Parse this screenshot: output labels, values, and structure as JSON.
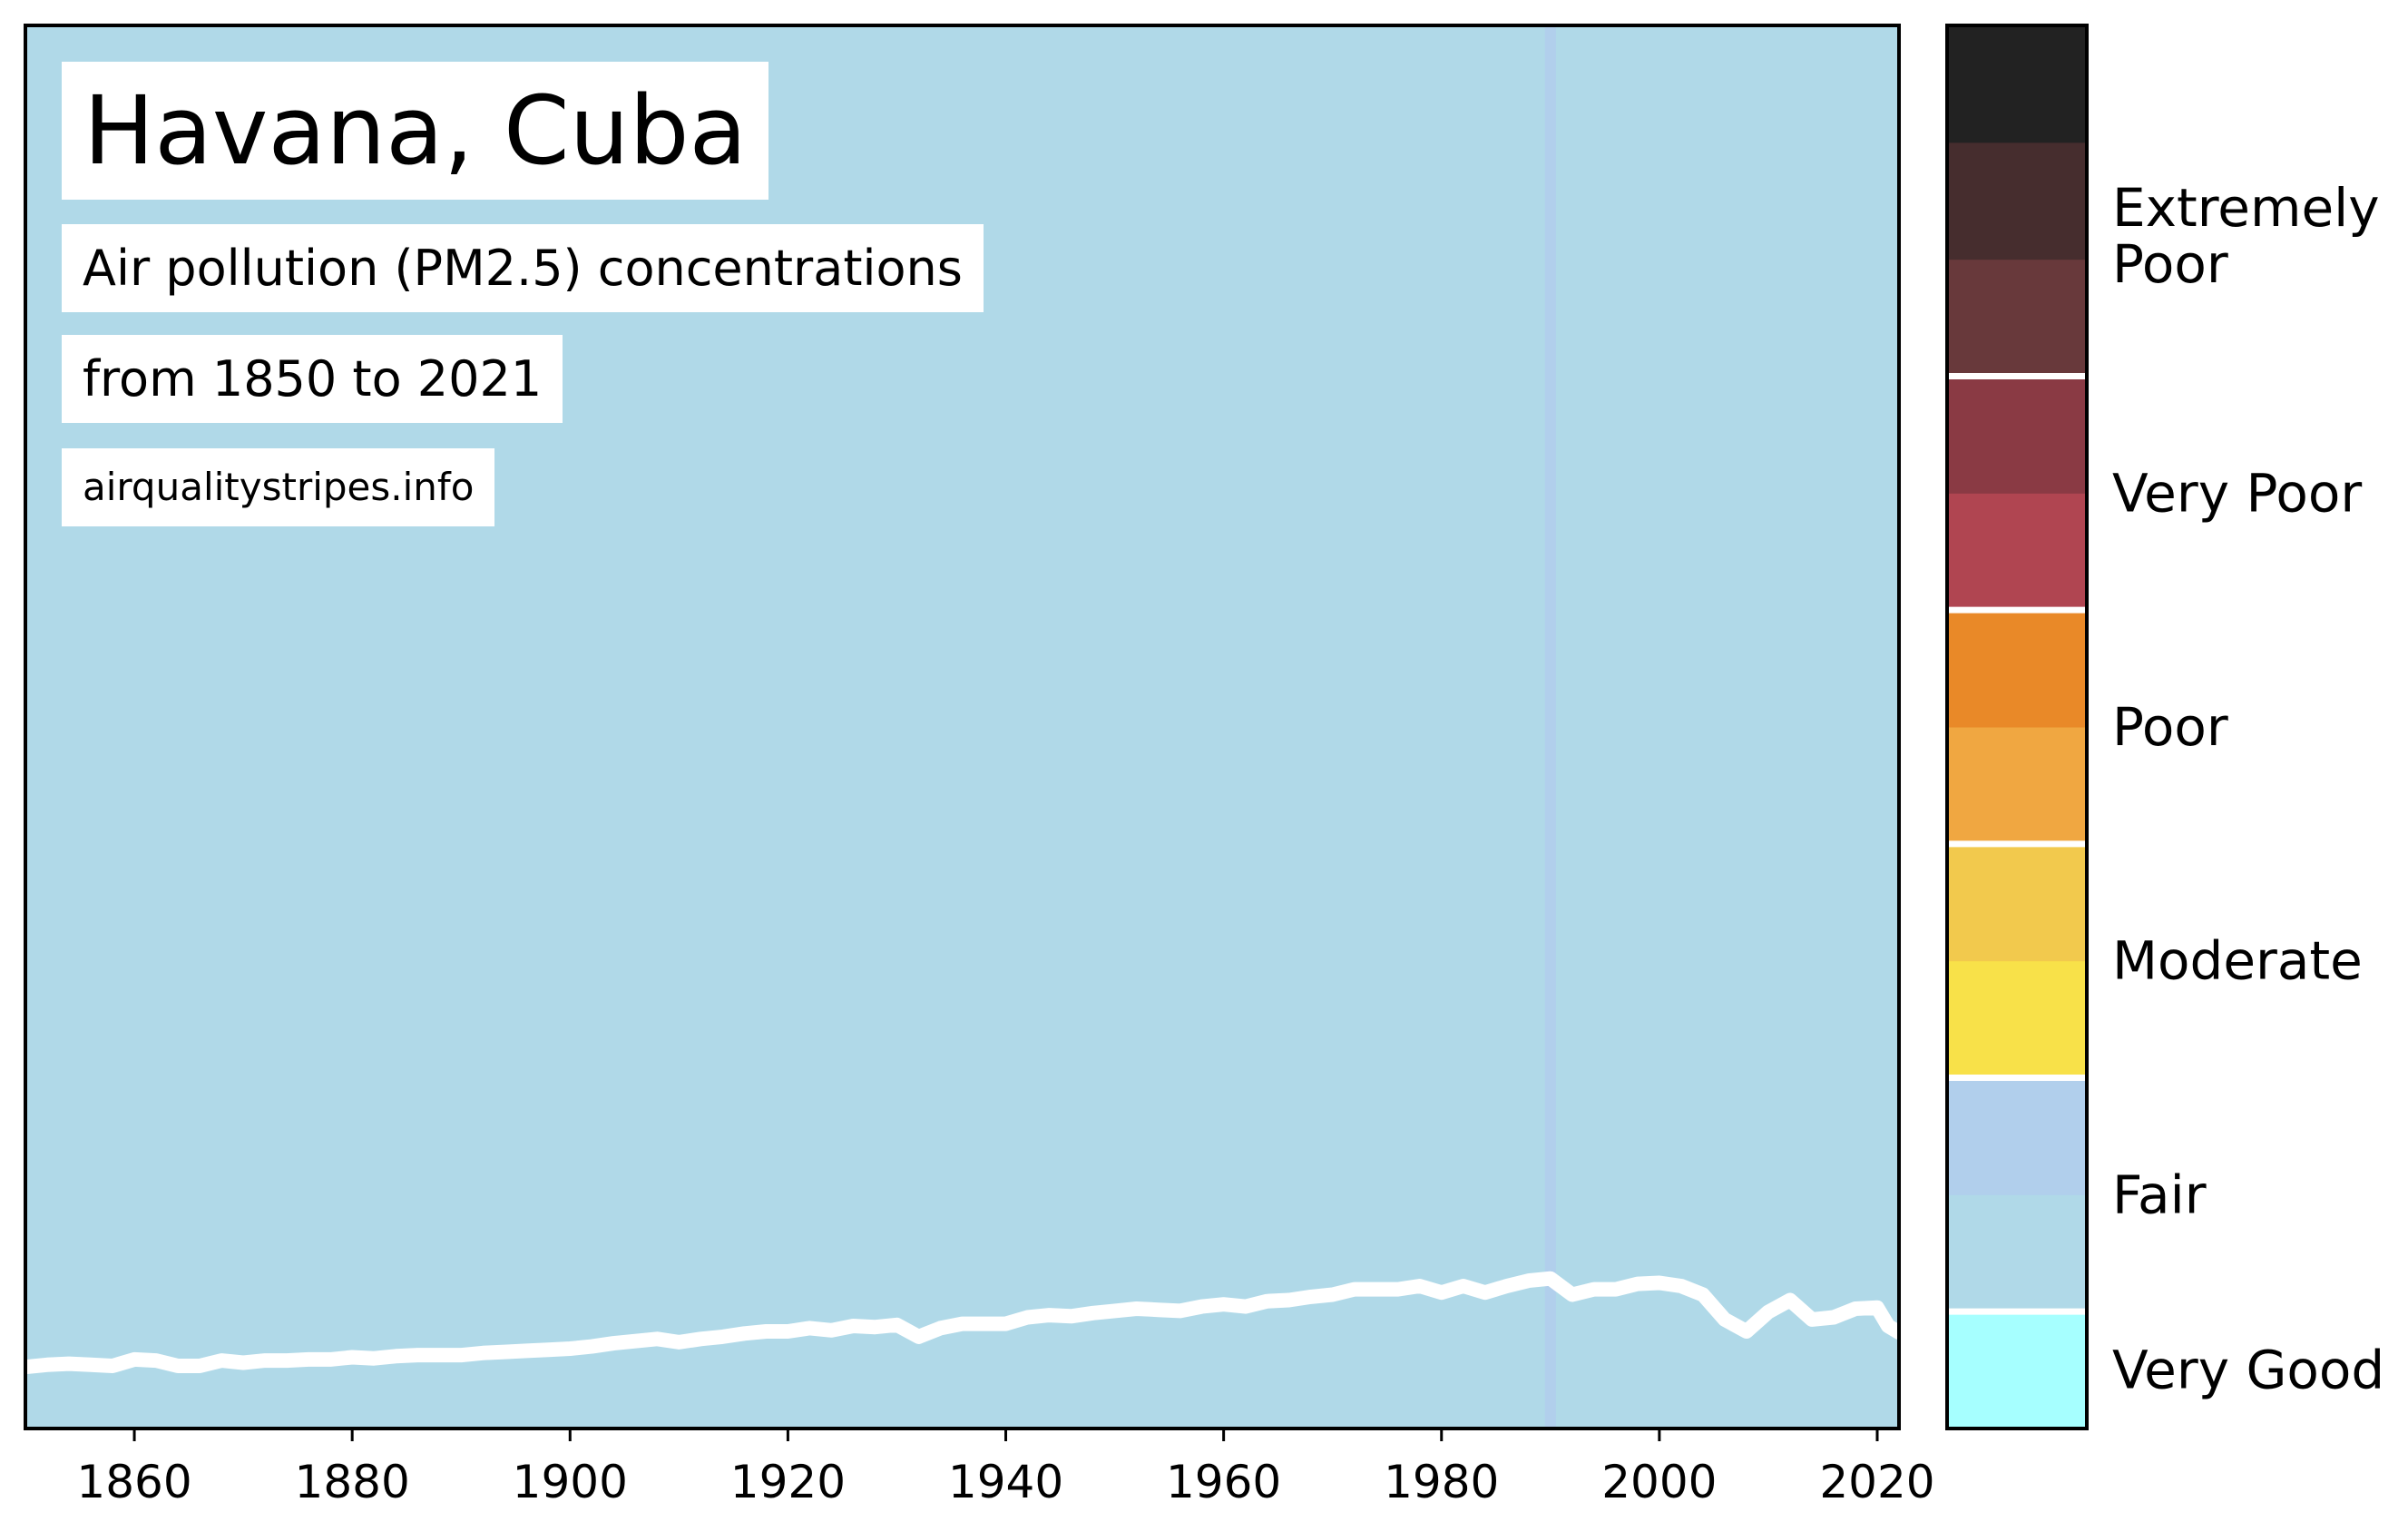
{
  "title": "Havana, Cuba",
  "subtitle_line1": "Air pollution (PM2.5) concentrations",
  "subtitle_line2": "from 1850 to 2021",
  "source": "airqualitystripes.info",
  "chart_data": {
    "type": "line",
    "title": "Havana, Cuba",
    "xlim": [
      1850,
      2022
    ],
    "ylim": [
      0,
      130
    ],
    "x_ticks": [
      1860,
      1880,
      1900,
      1920,
      1940,
      1960,
      1980,
      2000,
      2020
    ],
    "grid": false,
    "background_stripes": {
      "default_color": "#b0d9e8",
      "highlighted_years": [
        {
          "year": 1990,
          "color": "#b1cfec"
        }
      ]
    },
    "series": [
      {
        "line_color": "#ffffff",
        "points": [
          [
            1850,
            5.7
          ],
          [
            1852,
            5.9
          ],
          [
            1854,
            6.0
          ],
          [
            1856,
            5.9
          ],
          [
            1858,
            5.8
          ],
          [
            1860,
            6.4
          ],
          [
            1862,
            6.3
          ],
          [
            1864,
            5.8
          ],
          [
            1866,
            5.8
          ],
          [
            1868,
            6.3
          ],
          [
            1870,
            6.1
          ],
          [
            1872,
            6.3
          ],
          [
            1874,
            6.3
          ],
          [
            1876,
            6.4
          ],
          [
            1878,
            6.4
          ],
          [
            1880,
            6.6
          ],
          [
            1882,
            6.5
          ],
          [
            1884,
            6.7
          ],
          [
            1886,
            6.8
          ],
          [
            1888,
            6.8
          ],
          [
            1890,
            6.8
          ],
          [
            1892,
            7.0
          ],
          [
            1894,
            7.1
          ],
          [
            1896,
            7.2
          ],
          [
            1898,
            7.3
          ],
          [
            1900,
            7.4
          ],
          [
            1902,
            7.6
          ],
          [
            1904,
            7.9
          ],
          [
            1906,
            8.1
          ],
          [
            1908,
            8.3
          ],
          [
            1910,
            8.0
          ],
          [
            1912,
            8.3
          ],
          [
            1914,
            8.5
          ],
          [
            1916,
            8.8
          ],
          [
            1918,
            9.0
          ],
          [
            1920,
            9.0
          ],
          [
            1922,
            9.3
          ],
          [
            1924,
            9.1
          ],
          [
            1926,
            9.5
          ],
          [
            1928,
            9.4
          ],
          [
            1930,
            9.6
          ],
          [
            1932,
            8.5
          ],
          [
            1934,
            9.3
          ],
          [
            1936,
            9.7
          ],
          [
            1938,
            9.7
          ],
          [
            1940,
            9.7
          ],
          [
            1942,
            10.3
          ],
          [
            1944,
            10.5
          ],
          [
            1946,
            10.4
          ],
          [
            1948,
            10.7
          ],
          [
            1950,
            10.9
          ],
          [
            1952,
            11.1
          ],
          [
            1954,
            11.0
          ],
          [
            1956,
            10.9
          ],
          [
            1958,
            11.3
          ],
          [
            1960,
            11.5
          ],
          [
            1962,
            11.3
          ],
          [
            1964,
            11.8
          ],
          [
            1966,
            11.9
          ],
          [
            1968,
            12.2
          ],
          [
            1970,
            12.4
          ],
          [
            1972,
            12.9
          ],
          [
            1974,
            12.9
          ],
          [
            1976,
            12.9
          ],
          [
            1978,
            13.2
          ],
          [
            1980,
            12.6
          ],
          [
            1982,
            13.2
          ],
          [
            1984,
            12.6
          ],
          [
            1986,
            13.2
          ],
          [
            1988,
            13.7
          ],
          [
            1990,
            13.9
          ],
          [
            1992,
            12.4
          ],
          [
            1994,
            12.9
          ],
          [
            1996,
            12.9
          ],
          [
            1998,
            13.4
          ],
          [
            2000,
            13.5
          ],
          [
            2002,
            13.2
          ],
          [
            2004,
            12.4
          ],
          [
            2006,
            10.1
          ],
          [
            2008,
            9.0
          ],
          [
            2010,
            10.8
          ],
          [
            2012,
            11.9
          ],
          [
            2014,
            10.1
          ],
          [
            2016,
            10.3
          ],
          [
            2018,
            11.1
          ],
          [
            2020,
            11.2
          ],
          [
            2021,
            9.5
          ],
          [
            2022,
            8.9
          ]
        ]
      }
    ]
  },
  "colorbar": {
    "range": [
      0,
      120
    ],
    "segments": [
      {
        "from": 0,
        "to": 10,
        "color": "#a6ffff"
      },
      {
        "from": 10,
        "to": 20,
        "color": "#b0d9e8"
      },
      {
        "from": 20,
        "to": 30,
        "color": "#b1cfec"
      },
      {
        "from": 30,
        "to": 40,
        "color": "#f8e149"
      },
      {
        "from": 40,
        "to": 50,
        "color": "#f2c94d"
      },
      {
        "from": 50,
        "to": 60,
        "color": "#f0a741"
      },
      {
        "from": 60,
        "to": 70,
        "color": "#e98928"
      },
      {
        "from": 70,
        "to": 80,
        "color": "#b04551"
      },
      {
        "from": 80,
        "to": 90,
        "color": "#8a3a44"
      },
      {
        "from": 90,
        "to": 100,
        "color": "#68393b"
      },
      {
        "from": 100,
        "to": 110,
        "color": "#462d2e"
      },
      {
        "from": 110,
        "to": 120,
        "color": "#222222"
      }
    ],
    "boundaries": [
      10,
      30,
      50,
      70,
      90
    ],
    "categories": [
      {
        "label": "Very Good",
        "value": 5
      },
      {
        "label": "Fair",
        "value": 20
      },
      {
        "label": "Moderate",
        "value": 40
      },
      {
        "label": "Poor",
        "value": 60
      },
      {
        "label": "Very Poor",
        "value": 80
      },
      {
        "label": "Extremely\nPoor",
        "value": 102
      }
    ]
  }
}
